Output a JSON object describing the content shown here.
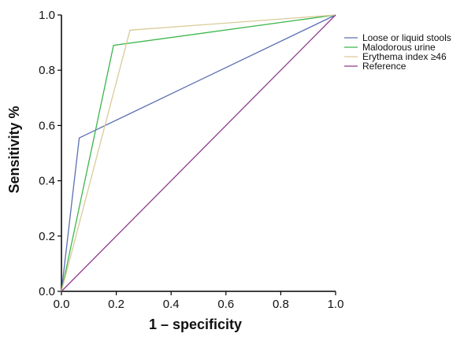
{
  "chart_data": {
    "type": "line",
    "title": "",
    "xlabel": "1 – specificity",
    "ylabel": "Sensitivity %",
    "xlim": [
      0,
      1
    ],
    "ylim": [
      0,
      1
    ],
    "x_ticks": [
      "0.0",
      "0.2",
      "0.4",
      "0.6",
      "0.8",
      "1.0"
    ],
    "y_ticks": [
      "0.0",
      "0.2",
      "0.4",
      "0.6",
      "0.8",
      "1.0"
    ],
    "grid": false,
    "legend_position": "top-right outside",
    "series": [
      {
        "name": "Loose or liquid stools",
        "color": "#5a6fb4",
        "points": [
          [
            0,
            0
          ],
          [
            0.065,
            0.555
          ],
          [
            1,
            1
          ]
        ]
      },
      {
        "name": "Malodorous urine",
        "color": "#3cb64a",
        "points": [
          [
            0,
            0
          ],
          [
            0.19,
            0.89
          ],
          [
            1,
            1
          ]
        ]
      },
      {
        "name": "Erythema index ≥46",
        "color": "#d9cb98",
        "points": [
          [
            0,
            0
          ],
          [
            0.25,
            0.945
          ],
          [
            1,
            1
          ]
        ]
      },
      {
        "name": "Reference",
        "color": "#8e3c8e",
        "points": [
          [
            0,
            0
          ],
          [
            1,
            1
          ]
        ]
      }
    ]
  }
}
